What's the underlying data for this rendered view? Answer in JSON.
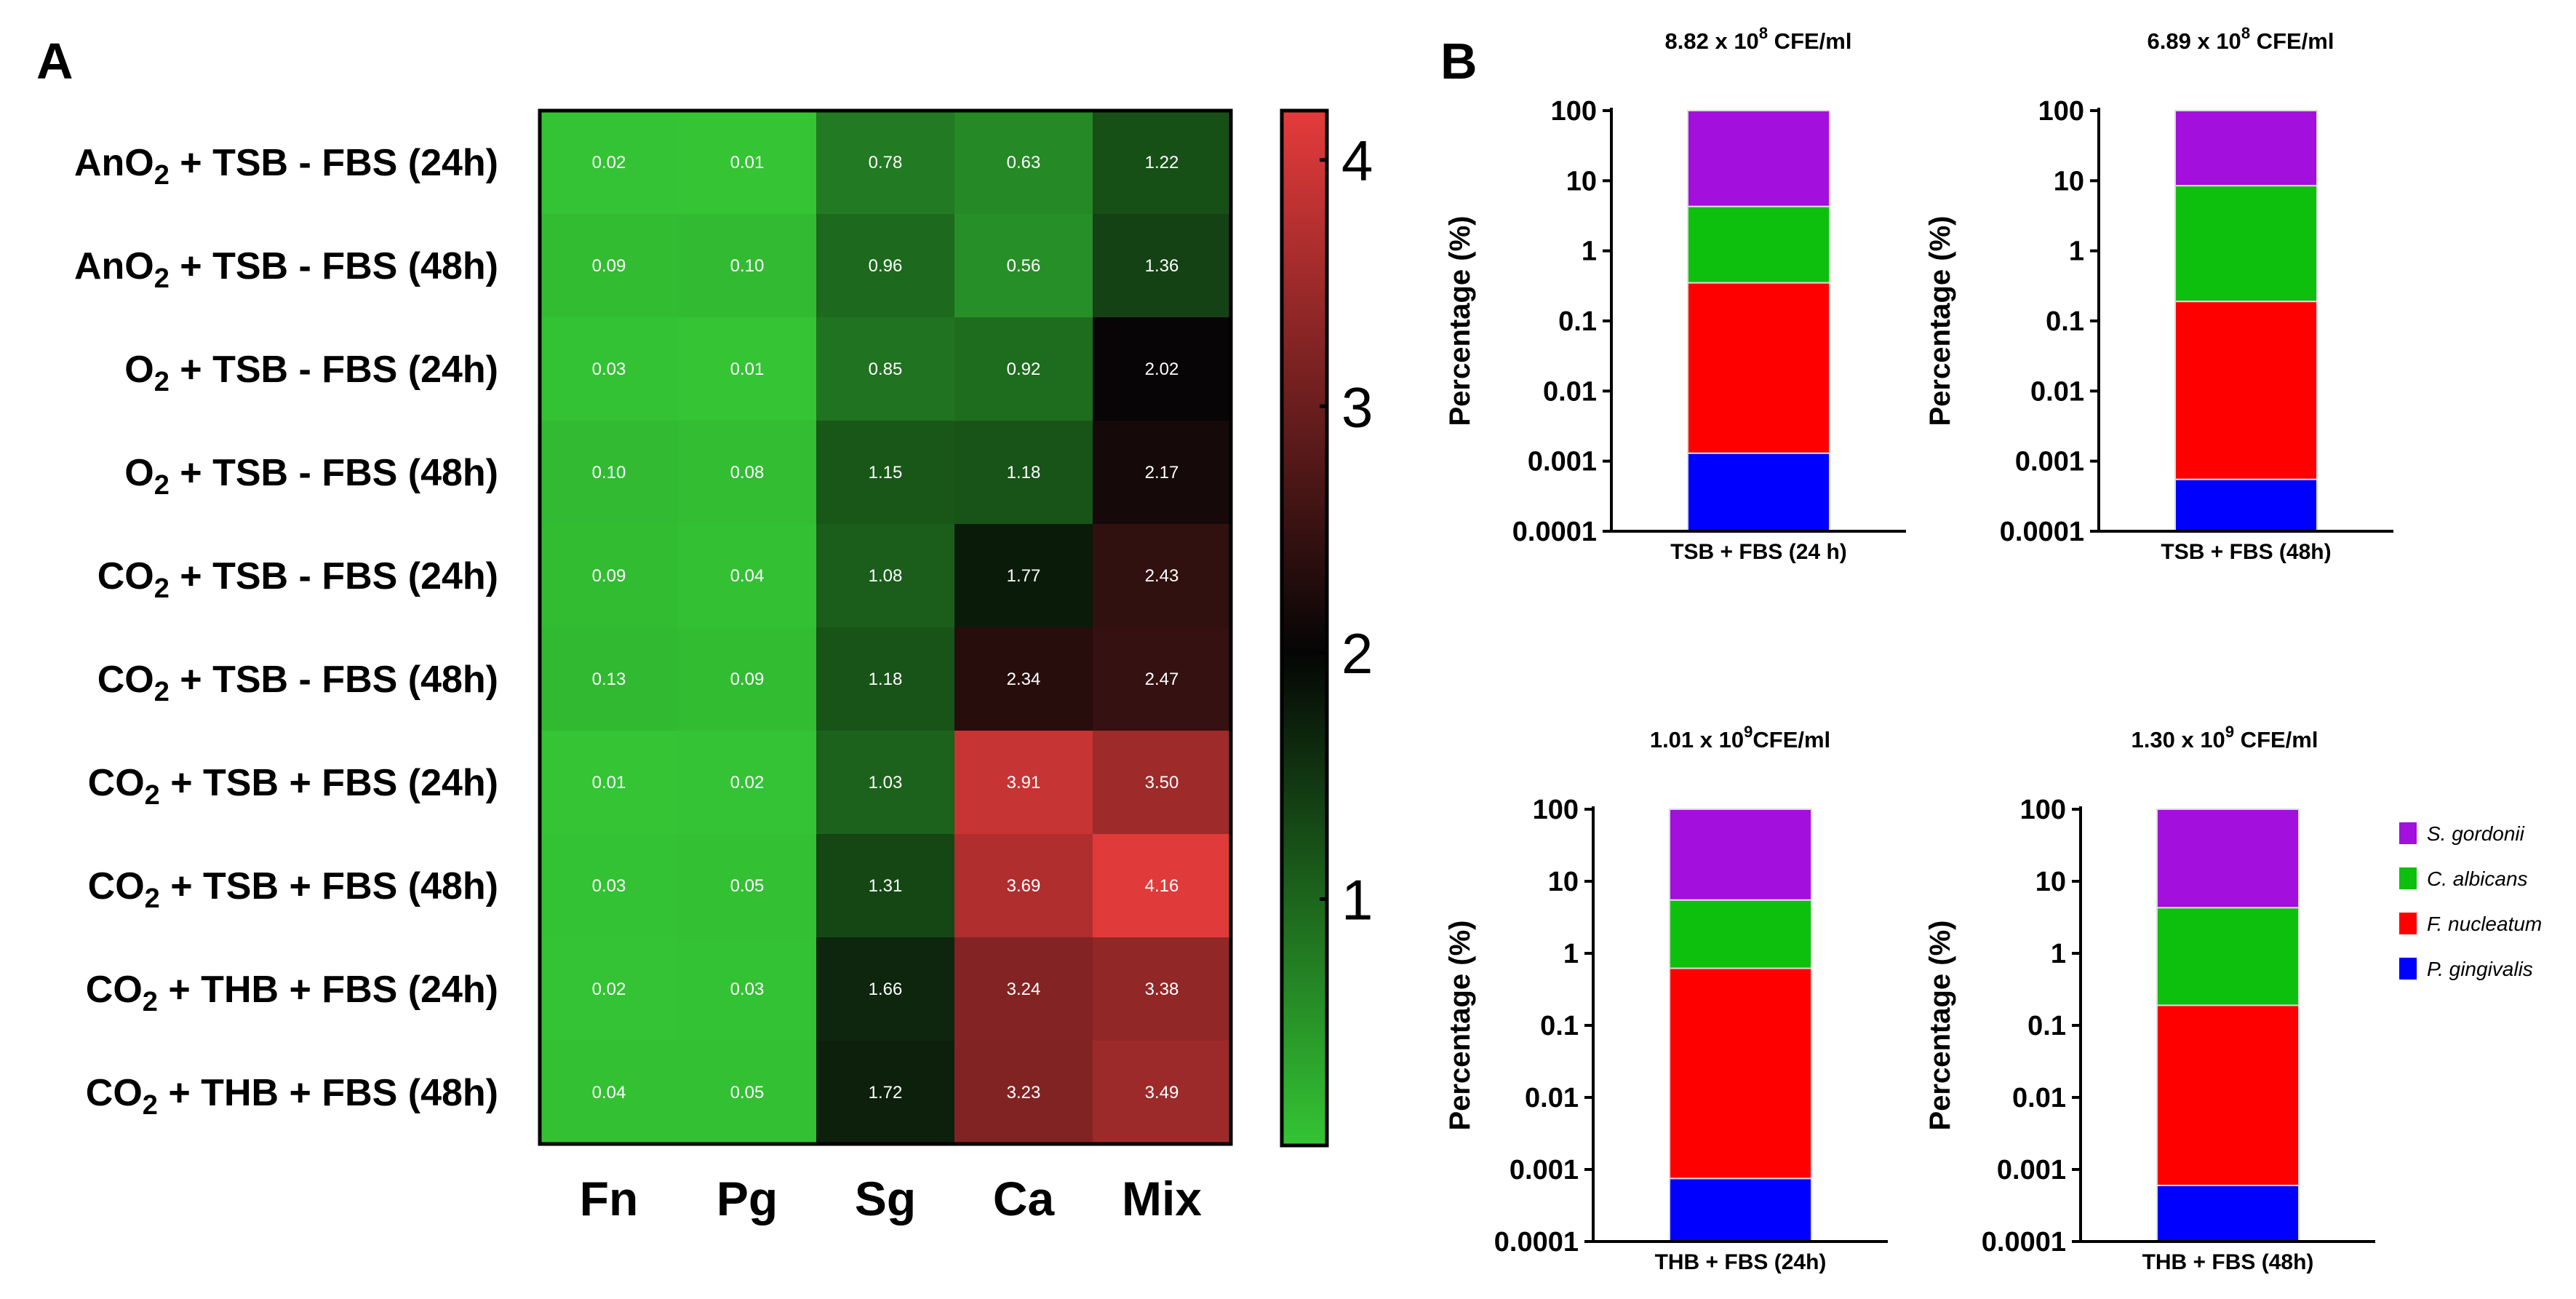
{
  "colors": {
    "green": "#34c534",
    "black": "#050505",
    "red": "#e53b3b",
    "s_gordonii": "#a30fdc",
    "c_albicans": "#0ec00e",
    "f_nucleatum": "#ff0000",
    "p_gingivalis": "#0000ff"
  },
  "chart_data": [
    {
      "type": "heatmap",
      "panel_letter": "A",
      "columns": [
        "Fn",
        "Pg",
        "Sg",
        "Ca",
        "Mix"
      ],
      "rows": [
        {
          "pre": "AnO",
          "sub": "2",
          "post": " + TSB - FBS (24h)"
        },
        {
          "pre": "AnO",
          "sub": "2",
          "post": " + TSB - FBS (48h)"
        },
        {
          "pre": "O",
          "sub": "2",
          "post": " + TSB - FBS (24h)"
        },
        {
          "pre": "O",
          "sub": "2",
          "post": " + TSB - FBS (48h)"
        },
        {
          "pre": "CO",
          "sub": "2",
          "post": " + TSB - FBS (24h)"
        },
        {
          "pre": "CO",
          "sub": "2",
          "post": " + TSB  - FBS (48h)"
        },
        {
          "pre": "CO",
          "sub": "2",
          "post": " + TSB + FBS (24h)"
        },
        {
          "pre": "CO",
          "sub": "2",
          "post": " + TSB + FBS (48h)"
        },
        {
          "pre": "CO",
          "sub": "2",
          "post": " + THB + FBS (24h)"
        },
        {
          "pre": "CO",
          "sub": "2",
          "post": " + THB + FBS (48h)"
        }
      ],
      "values": [
        [
          "0.02",
          "0.01",
          "0.78",
          "0.63",
          "1.22"
        ],
        [
          "0.09",
          "0.10",
          "0.96",
          "0.56",
          "1.36"
        ],
        [
          "0.03",
          "0.01",
          "0.85",
          "0.92",
          "2.02"
        ],
        [
          "0.10",
          "0.08",
          "1.15",
          "1.18",
          "2.17"
        ],
        [
          "0.09",
          "0.04",
          "1.08",
          "1.77",
          "2.43"
        ],
        [
          "0.13",
          "0.09",
          "1.18",
          "2.34",
          "2.47"
        ],
        [
          "0.01",
          "0.02",
          "1.03",
          "3.91",
          "3.50"
        ],
        [
          "0.03",
          "0.05",
          "1.31",
          "3.69",
          "4.16"
        ],
        [
          "0.02",
          "0.03",
          "1.66",
          "3.24",
          "3.38"
        ],
        [
          "0.04",
          "0.05",
          "1.72",
          "3.23",
          "3.49"
        ]
      ],
      "colorbar": {
        "min": 0,
        "max": 4.2,
        "ticks": [
          "1",
          "2",
          "3",
          "4"
        ],
        "tick_values": [
          1,
          2,
          3,
          4
        ]
      }
    },
    {
      "type": "stacked-bar",
      "panel_letter": "B",
      "yscale": "log",
      "ylabel": "Percentage (%)",
      "yticks": [
        "100",
        "10",
        "1",
        "0.1",
        "0.01",
        "0.001",
        "0.0001"
      ],
      "legend": [
        "S. gordonii",
        "C. albicans",
        "F. nucleatum",
        "P. gingivalis"
      ],
      "charts": [
        {
          "title": {
            "base": "8.82 x 10",
            "exp": "8",
            "unit": " CFE/ml"
          },
          "category": "TSB + FBS (24 h)",
          "segments": [
            {
              "species": "P. gingivalis",
              "from": 0.0001,
              "to": 0.0013
            },
            {
              "species": "F. nucleatum",
              "from": 0.0013,
              "to": 0.35
            },
            {
              "species": "C. albicans",
              "from": 0.35,
              "to": 4.3
            },
            {
              "species": "S. gordonii",
              "from": 4.3,
              "to": 100
            }
          ]
        },
        {
          "title": {
            "base": "6.89 x 10",
            "exp": "8",
            "unit": " CFE/ml"
          },
          "category": "TSB + FBS (48h)",
          "segments": [
            {
              "species": "P. gingivalis",
              "from": 0.0001,
              "to": 0.00055
            },
            {
              "species": "F. nucleatum",
              "from": 0.00055,
              "to": 0.19
            },
            {
              "species": "C. albicans",
              "from": 0.19,
              "to": 8.5
            },
            {
              "species": "S. gordonii",
              "from": 8.5,
              "to": 100
            }
          ]
        },
        {
          "title": {
            "base": "1.01 x 10",
            "exp": "9",
            "unit": "CFE/ml"
          },
          "category": "THB + FBS (24h)",
          "segments": [
            {
              "species": "P. gingivalis",
              "from": 0.0001,
              "to": 0.00075
            },
            {
              "species": "F. nucleatum",
              "from": 0.00075,
              "to": 0.62
            },
            {
              "species": "C. albicans",
              "from": 0.62,
              "to": 5.5
            },
            {
              "species": "S. gordonii",
              "from": 5.5,
              "to": 100
            }
          ]
        },
        {
          "title": {
            "base": "1.30 x 10",
            "exp": "9",
            "unit": " CFE/ml"
          },
          "category": "THB + FBS (48h)",
          "segments": [
            {
              "species": "P. gingivalis",
              "from": 0.0001,
              "to": 0.0006
            },
            {
              "species": "F. nucleatum",
              "from": 0.0006,
              "to": 0.19
            },
            {
              "species": "C. albicans",
              "from": 0.19,
              "to": 4.3
            },
            {
              "species": "S. gordonii",
              "from": 4.3,
              "to": 100
            }
          ]
        }
      ]
    }
  ]
}
